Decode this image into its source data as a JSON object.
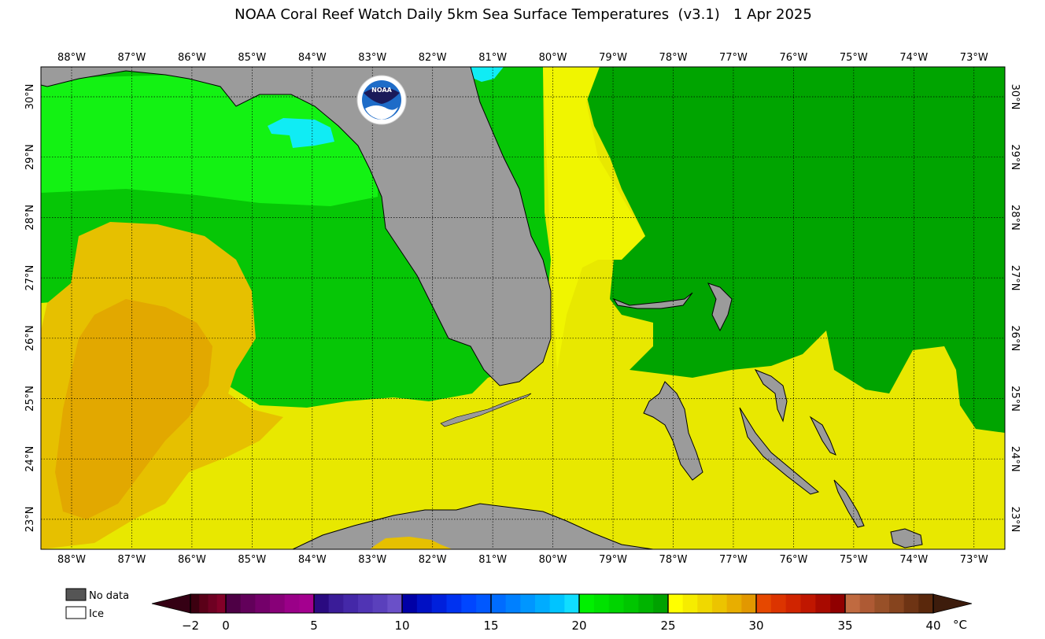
{
  "title": "NOAA Coral Reef Watch Daily 5km Sea Surface Temperatures  (v3.1)   1 Apr 2025",
  "map": {
    "lon_labels": [
      "88°W",
      "87°W",
      "86°W",
      "85°W",
      "84°W",
      "83°W",
      "82°W",
      "81°W",
      "80°W",
      "79°W",
      "78°W",
      "77°W",
      "76°W",
      "75°W",
      "74°W",
      "73°W"
    ],
    "lat_labels": [
      "30°N",
      "29°N",
      "28°N",
      "27°N",
      "26°N",
      "25°N",
      "24°N",
      "23°N"
    ],
    "logo_text": "NOAA",
    "colors": {
      "land": "#9b9b9b",
      "gulf_green": "#06c606",
      "bright_green": "#13f213",
      "dark_green": "#00a400",
      "cyan": "#10ecf4",
      "yellow": "#e8e800",
      "lime_yellow": "#f0f500",
      "gold": "#e6c000",
      "orange": "#e2a800"
    }
  },
  "legend": {
    "no_data_label": "No data",
    "ice_label": "Ice",
    "no_data_color": "#555555",
    "ice_color": "#ffffff"
  },
  "colorbar": {
    "tick_labels": [
      "−2",
      "0",
      "5",
      "10",
      "15",
      "20",
      "25",
      "30",
      "35",
      "40"
    ],
    "unit": "°C",
    "underflow_color": "#350014",
    "overflow_color": "#3d1c0c",
    "segments": [
      [
        "#3c0010",
        "#5a0018",
        "#6e0022",
        "#820028"
      ],
      [
        "#4e0045",
        "#62005a",
        "#74006a",
        "#880078",
        "#9a0088",
        "#a4008f"
      ],
      [
        "#2a0a80",
        "#3a1c98",
        "#4428a8",
        "#5034b4",
        "#5a40bc",
        "#6a50c8"
      ],
      [
        "#0000a6",
        "#0010c4",
        "#0020dc",
        "#0032f0",
        "#0046ff",
        "#0058ff"
      ],
      [
        "#006cff",
        "#0080ff",
        "#0096ff",
        "#00acff",
        "#00c4ff",
        "#10deff"
      ],
      [
        "#00f000",
        "#00e200",
        "#00d400",
        "#00c600",
        "#00b400",
        "#00a200"
      ],
      [
        "#ffff00",
        "#f6ec00",
        "#f0d800",
        "#ecc400",
        "#e8ae00",
        "#e29800"
      ],
      [
        "#e64800",
        "#dc3400",
        "#d02400",
        "#c01600",
        "#a80a00",
        "#900000"
      ],
      [
        "#c06a40",
        "#ae5a34",
        "#985028",
        "#86441e",
        "#6e3414",
        "#5a280c"
      ]
    ]
  }
}
